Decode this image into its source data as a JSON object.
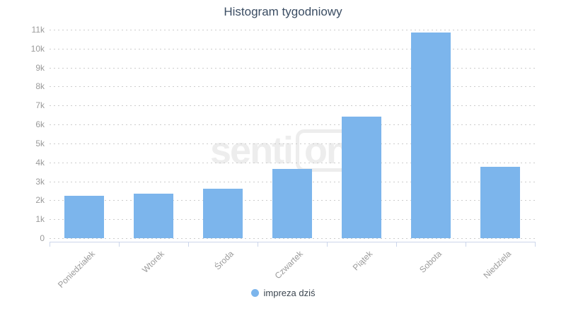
{
  "watermark": {
    "prefix": "senti",
    "boxed": "one"
  },
  "colors": {
    "bar": "#7cb5ec",
    "grid": "#cccccc",
    "axis": "#ccd6eb",
    "label": "#9a9a9a",
    "title": "#3b4d63",
    "legendtext": "#3c4650",
    "watermark": "#ededed"
  },
  "chart_data": {
    "type": "bar",
    "title": "Histogram tygodniowy",
    "categories": [
      "Poniedziałek",
      "Wtorek",
      "Środa",
      "Czwartek",
      "Piątek",
      "Sobota",
      "Niedziela"
    ],
    "series": [
      {
        "name": "impreza dziś",
        "values": [
          2250,
          2350,
          2600,
          3650,
          6400,
          10850,
          3780
        ]
      }
    ],
    "xlabel": "",
    "ylabel": "",
    "ylim": [
      0,
      11000
    ],
    "ytick_step": 1000,
    "ytick_labels": [
      "0",
      "1k",
      "2k",
      "3k",
      "4k",
      "5k",
      "6k",
      "7k",
      "8k",
      "9k",
      "10k",
      "11k"
    ],
    "grid": "horizontal-dotted",
    "legend_position": "bottom-center",
    "x_label_rotation": -45
  }
}
